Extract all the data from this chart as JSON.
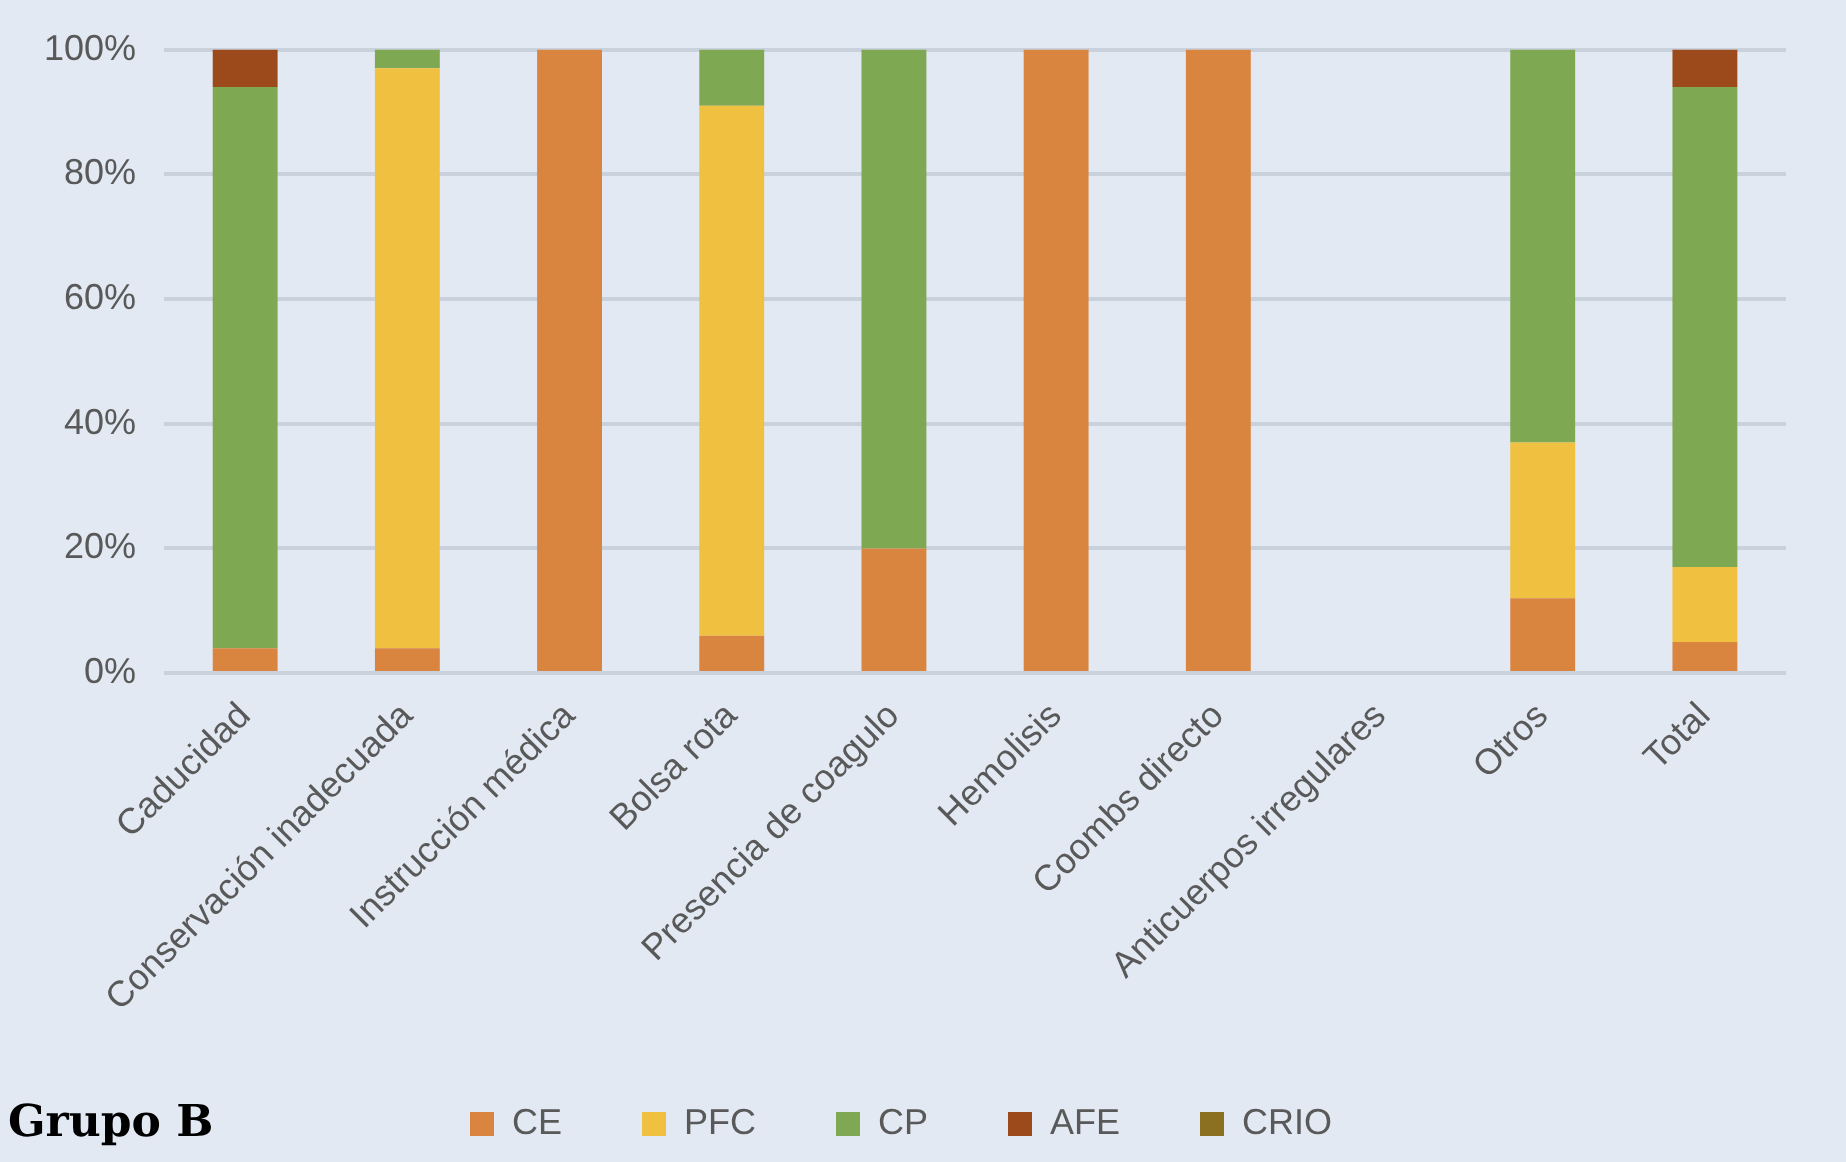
{
  "chart_data": {
    "type": "bar",
    "stacked": true,
    "categories": [
      "Caducidad",
      "Conservación inadecuada",
      "Instrucción médica",
      "Bolsa rota",
      "Presencia de coagulo",
      "Hemolisis",
      "Coombs directo",
      "Anticuerpos irregulares",
      "Otros",
      "Total"
    ],
    "series": [
      {
        "name": "CE",
        "color": "#d9843f",
        "values": [
          4,
          4,
          100,
          6,
          20,
          100,
          100,
          0,
          12,
          5
        ]
      },
      {
        "name": "PFC",
        "color": "#f0c040",
        "values": [
          0,
          93,
          0,
          85,
          0,
          0,
          0,
          0,
          25,
          12
        ]
      },
      {
        "name": "CP",
        "color": "#7fa852",
        "values": [
          90,
          3,
          0,
          9,
          80,
          0,
          0,
          0,
          63,
          77
        ]
      },
      {
        "name": "AFE",
        "color": "#9c4a1c",
        "values": [
          6,
          0,
          0,
          0,
          0,
          0,
          0,
          0,
          0,
          6
        ]
      },
      {
        "name": "CRIO",
        "color": "#8a7020",
        "values": [
          0,
          0,
          0,
          0,
          0,
          0,
          0,
          0,
          0,
          0
        ]
      }
    ],
    "ylim": [
      0,
      100
    ],
    "yticks": [
      {
        "value": 0,
        "label": "0%"
      },
      {
        "value": 20,
        "label": "20%"
      },
      {
        "value": 40,
        "label": "40%"
      },
      {
        "value": 60,
        "label": "60%"
      },
      {
        "value": 80,
        "label": "80%"
      },
      {
        "value": 100,
        "label": "100%"
      }
    ],
    "grid": "y",
    "legend": "bottom",
    "annotations": [
      "Grupo B"
    ]
  }
}
